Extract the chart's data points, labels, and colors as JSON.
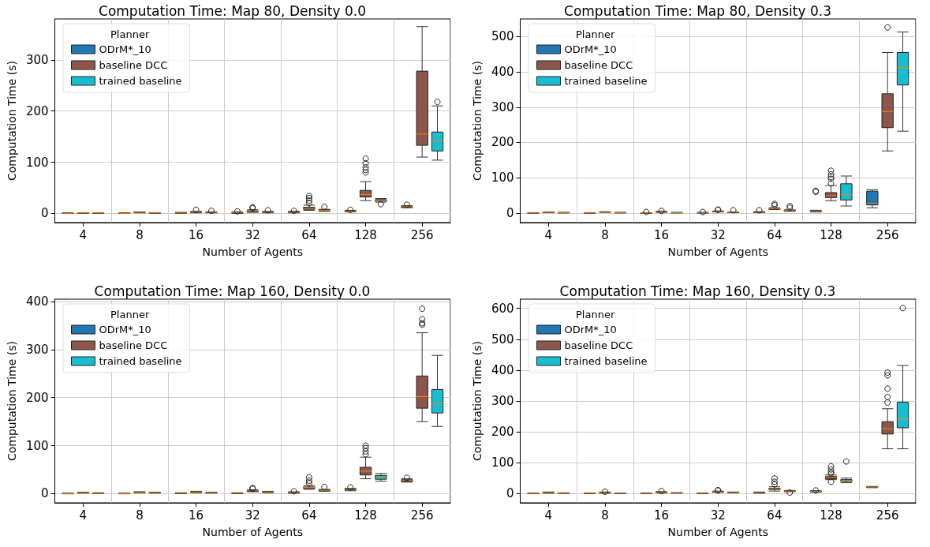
{
  "chart_data": [
    {
      "type": "box",
      "title": "Computation Time: Map 80, Density 0.0",
      "xlabel": "Number of Agents",
      "ylabel": "Computation Time (s)",
      "legend_title": "Planner",
      "legend": "top left",
      "grid": true,
      "categories": [
        "4",
        "8",
        "16",
        "32",
        "64",
        "128",
        "256"
      ],
      "ylim": [
        -18,
        380
      ],
      "yticks": [
        0,
        100,
        200,
        300
      ],
      "series": [
        {
          "name": "ODrM*_10",
          "color": "#1f77b4",
          "boxes": [
            {
              "low": 0,
              "q1": 0,
              "median": 0,
              "q3": 0.5,
              "high": 1
            },
            {
              "low": 0,
              "q1": 0,
              "median": 0,
              "q3": 0.5,
              "high": 1
            },
            {
              "low": 0,
              "q1": 0,
              "median": 0.5,
              "q3": 1,
              "high": 2
            },
            {
              "low": 0,
              "q1": 0.5,
              "median": 1,
              "q3": 1.5,
              "high": 3,
              "outliers": [
                4
              ]
            },
            {
              "low": 1,
              "q1": 1.5,
              "median": 2,
              "q3": 3,
              "high": 4,
              "outliers": [
                5
              ]
            },
            {
              "low": 3,
              "q1": 4,
              "median": 4.5,
              "q3": 5,
              "high": 6,
              "outliers": [
                7
              ]
            },
            {
              "low": 11,
              "q1": 12,
              "median": 13,
              "q3": 14,
              "high": 15,
              "outliers": [
                17
              ]
            }
          ]
        },
        {
          "name": "baseline DCC",
          "color": "#8c564b",
          "boxes": [
            {
              "low": 0.5,
              "q1": 0.8,
              "median": 1,
              "q3": 1.2,
              "high": 1.5
            },
            {
              "low": 1,
              "q1": 1.5,
              "median": 2,
              "q3": 2.5,
              "high": 3
            },
            {
              "low": 1,
              "q1": 2,
              "median": 2.5,
              "q3": 3,
              "high": 4,
              "outliers": [
                7
              ]
            },
            {
              "low": 2,
              "q1": 3,
              "median": 4,
              "q3": 5,
              "high": 7,
              "outliers": [
                10,
                12
              ]
            },
            {
              "low": 6,
              "q1": 8,
              "median": 10,
              "q3": 12,
              "high": 16,
              "outliers": [
                20,
                25,
                30,
                34
              ]
            },
            {
              "low": 25,
              "q1": 32,
              "median": 37,
              "q3": 45,
              "high": 62,
              "outliers": [
                80,
                85,
                90,
                98,
                107
              ]
            },
            {
              "low": 110,
              "q1": 133,
              "median": 155,
              "q3": 278,
              "high": 365
            }
          ]
        },
        {
          "name": "trained baseline",
          "color": "#17becf",
          "boxes": [
            {
              "low": 0.5,
              "q1": 0.7,
              "median": 1,
              "q3": 1.2,
              "high": 1.5
            },
            {
              "low": 0.5,
              "q1": 0.7,
              "median": 1,
              "q3": 1.2,
              "high": 1.5
            },
            {
              "low": 1,
              "q1": 1.5,
              "median": 2,
              "q3": 2.5,
              "high": 3,
              "outliers": [
                5
              ]
            },
            {
              "low": 1,
              "q1": 2,
              "median": 2.5,
              "q3": 3,
              "high": 4,
              "outliers": [
                6
              ]
            },
            {
              "low": 4,
              "q1": 5,
              "median": 6,
              "q3": 7,
              "high": 8,
              "outliers": [
                13
              ]
            },
            {
              "low": 22,
              "q1": 24,
              "median": 25,
              "q3": 27,
              "high": 29,
              "outliers": [
                18
              ]
            },
            {
              "low": 104,
              "q1": 122,
              "median": 142,
              "q3": 159,
              "high": 210,
              "outliers": [
                218
              ]
            }
          ]
        }
      ]
    },
    {
      "type": "box",
      "title": "Computation Time: Map 80, Density 0.3",
      "xlabel": "Number of Agents",
      "ylabel": "Computation Time (s)",
      "legend_title": "Planner",
      "legend": "top left",
      "grid": true,
      "categories": [
        "4",
        "8",
        "16",
        "32",
        "64",
        "128",
        "256"
      ],
      "ylim": [
        -27,
        550
      ],
      "yticks": [
        0,
        100,
        200,
        300,
        400,
        500
      ],
      "series": [
        {
          "name": "ODrM*_10",
          "color": "#1f77b4",
          "boxes": [
            {
              "low": 0,
              "q1": 0,
              "median": 0,
              "q3": 0.5,
              "high": 1
            },
            {
              "low": 0,
              "q1": 0,
              "median": 0,
              "q3": 0.5,
              "high": 1
            },
            {
              "low": 0,
              "q1": 0,
              "median": 0,
              "q3": 0.5,
              "high": 1,
              "outliers": [
                3
              ]
            },
            {
              "low": 0,
              "q1": 0.5,
              "median": 1,
              "q3": 1.5,
              "high": 2,
              "outliers": [
                3
              ]
            },
            {
              "low": 1,
              "q1": 1.5,
              "median": 2,
              "q3": 3,
              "high": 4,
              "outliers": [
                8
              ]
            },
            {
              "low": 3,
              "q1": 4,
              "median": 5,
              "q3": 6,
              "high": 8,
              "outliers": [
                60,
                63
              ]
            },
            {
              "low": 15,
              "q1": 23,
              "median": 28,
              "q3": 62,
              "high": 66
            }
          ]
        },
        {
          "name": "baseline DCC",
          "color": "#8c564b",
          "boxes": [
            {
              "low": 1,
              "q1": 1.5,
              "median": 2,
              "q3": 2.5,
              "high": 3
            },
            {
              "low": 2,
              "q1": 2.5,
              "median": 3,
              "q3": 3.5,
              "high": 4
            },
            {
              "low": 2,
              "q1": 2.5,
              "median": 3,
              "q3": 4,
              "high": 5,
              "outliers": [
                6
              ]
            },
            {
              "low": 3,
              "q1": 4,
              "median": 4.5,
              "q3": 5,
              "high": 6,
              "outliers": [
                9,
                10
              ]
            },
            {
              "low": 10,
              "q1": 11,
              "median": 12,
              "q3": 13,
              "high": 15,
              "outliers": [
                22,
                26
              ]
            },
            {
              "low": 35,
              "q1": 44,
              "median": 49,
              "q3": 58,
              "high": 78,
              "outliers": [
                84,
                97,
                102,
                110,
                120
              ]
            },
            {
              "low": 176,
              "q1": 242,
              "median": 288,
              "q3": 338,
              "high": 455,
              "outliers": [
                526
              ]
            }
          ]
        },
        {
          "name": "trained baseline",
          "color": "#17becf",
          "boxes": [
            {
              "low": 0.5,
              "q1": 1,
              "median": 1,
              "q3": 1.5,
              "high": 2
            },
            {
              "low": 0.5,
              "q1": 1,
              "median": 1,
              "q3": 1.5,
              "high": 2
            },
            {
              "low": 0.5,
              "q1": 1,
              "median": 1,
              "q3": 1.5,
              "high": 2
            },
            {
              "low": 1,
              "q1": 1.5,
              "median": 2,
              "q3": 2.5,
              "high": 3,
              "outliers": [
                8
              ]
            },
            {
              "low": 5,
              "q1": 6,
              "median": 7,
              "q3": 8,
              "high": 9,
              "outliers": [
                15,
                20
              ]
            },
            {
              "low": 20,
              "q1": 37,
              "median": 52,
              "q3": 83,
              "high": 105
            },
            {
              "low": 232,
              "q1": 363,
              "median": 412,
              "q3": 455,
              "high": 513
            }
          ]
        }
      ]
    },
    {
      "type": "box",
      "title": "Computation Time: Map 160, Density 0.0",
      "xlabel": "Number of Agents",
      "ylabel": "Computation Time (s)",
      "legend_title": "Planner",
      "legend": "top left",
      "grid": true,
      "categories": [
        "4",
        "8",
        "16",
        "32",
        "64",
        "128",
        "256"
      ],
      "ylim": [
        -19,
        405
      ],
      "yticks": [
        0,
        100,
        200,
        300,
        400
      ],
      "series": [
        {
          "name": "ODrM*_10",
          "color": "#1f77b4",
          "boxes": [
            {
              "low": 0,
              "q1": 0,
              "median": 0,
              "q3": 0.5,
              "high": 1
            },
            {
              "low": 0,
              "q1": 0,
              "median": 0,
              "q3": 0.5,
              "high": 1
            },
            {
              "low": 0,
              "q1": 0.5,
              "median": 1,
              "q3": 1.5,
              "high": 2
            },
            {
              "low": 0,
              "q1": 0.5,
              "median": 1,
              "q3": 1.5,
              "high": 2
            },
            {
              "low": 1,
              "q1": 2,
              "median": 2.5,
              "q3": 3,
              "high": 4,
              "outliers": [
                5
              ]
            },
            {
              "low": 6,
              "q1": 8,
              "median": 9,
              "q3": 10,
              "high": 11,
              "outliers": [
                13
              ]
            },
            {
              "low": 24,
              "q1": 26,
              "median": 28,
              "q3": 29,
              "high": 31,
              "outliers": [
                33
              ]
            }
          ]
        },
        {
          "name": "baseline DCC",
          "color": "#8c564b",
          "boxes": [
            {
              "low": 1,
              "q1": 1.5,
              "median": 2,
              "q3": 2.5,
              "high": 3
            },
            {
              "low": 2,
              "q1": 2.5,
              "median": 3,
              "q3": 3.5,
              "high": 4
            },
            {
              "low": 2,
              "q1": 3,
              "median": 3.5,
              "q3": 4,
              "high": 5
            },
            {
              "low": 4,
              "q1": 5,
              "median": 6,
              "q3": 6.5,
              "high": 8,
              "outliers": [
                10,
                12
              ]
            },
            {
              "low": 9,
              "q1": 11,
              "median": 13,
              "q3": 14,
              "high": 17,
              "outliers": [
                22,
                27,
                34
              ]
            },
            {
              "low": 31,
              "q1": 39,
              "median": 47,
              "q3": 55,
              "high": 76,
              "outliers": [
                82,
                88,
                95,
                100
              ]
            },
            {
              "low": 150,
              "q1": 178,
              "median": 202,
              "q3": 245,
              "high": 335,
              "outliers": [
                352,
                355,
                363,
                385
              ]
            }
          ]
        },
        {
          "name": "trained baseline",
          "color": "#17becf",
          "boxes": [
            {
              "low": 0.5,
              "q1": 1,
              "median": 1,
              "q3": 1.5,
              "high": 2
            },
            {
              "low": 1,
              "q1": 1.5,
              "median": 2,
              "q3": 2.5,
              "high": 3
            },
            {
              "low": 1,
              "q1": 1.5,
              "median": 2,
              "q3": 2.5,
              "high": 3
            },
            {
              "low": 2,
              "q1": 3,
              "median": 3.5,
              "q3": 4,
              "high": 5
            },
            {
              "low": 5,
              "q1": 6,
              "median": 7,
              "q3": 8,
              "high": 9,
              "outliers": [
                14
              ]
            },
            {
              "low": 26,
              "q1": 30,
              "median": 33,
              "q3": 38,
              "high": 42
            },
            {
              "low": 140,
              "q1": 168,
              "median": 187,
              "q3": 217,
              "high": 288
            }
          ]
        }
      ]
    },
    {
      "type": "box",
      "title": "Computation Time: Map 160, Density 0.3",
      "xlabel": "Number of Agents",
      "ylabel": "Computation Time (s)",
      "legend_title": "Planner",
      "legend": "top left",
      "grid": true,
      "categories": [
        "4",
        "8",
        "16",
        "32",
        "64",
        "128",
        "256"
      ],
      "ylim": [
        -30,
        630
      ],
      "yticks": [
        0,
        100,
        200,
        300,
        400,
        500,
        600
      ],
      "series": [
        {
          "name": "ODrM*_10",
          "color": "#1f77b4",
          "boxes": [
            {
              "low": 0,
              "q1": 0,
              "median": 0,
              "q3": 0.5,
              "high": 1
            },
            {
              "low": 0,
              "q1": 0.5,
              "median": 1,
              "q3": 1.5,
              "high": 2
            },
            {
              "low": 0,
              "q1": 0,
              "median": 0.5,
              "q3": 1,
              "high": 1
            },
            {
              "low": 0,
              "q1": 0.5,
              "median": 1,
              "q3": 1.5,
              "high": 2
            },
            {
              "low": 1,
              "q1": 2,
              "median": 3,
              "q3": 4,
              "high": 5
            },
            {
              "low": 5,
              "q1": 6,
              "median": 7,
              "q3": 8,
              "high": 9,
              "outliers": [
                10
              ]
            },
            {
              "low": 19,
              "q1": 20,
              "median": 21,
              "q3": 22,
              "high": 23
            }
          ]
        },
        {
          "name": "baseline DCC",
          "color": "#8c564b",
          "boxes": [
            {
              "low": 1,
              "q1": 2,
              "median": 3,
              "q3": 4,
              "high": 5
            },
            {
              "low": 1,
              "q1": 2,
              "median": 3,
              "q3": 4,
              "high": 5,
              "outliers": [
                6
              ]
            },
            {
              "low": 2,
              "q1": 3,
              "median": 4,
              "q3": 5,
              "high": 6,
              "outliers": [
                8
              ]
            },
            {
              "low": 4,
              "q1": 5,
              "median": 6,
              "q3": 7,
              "high": 8,
              "outliers": [
                10,
                11
              ]
            },
            {
              "low": 8,
              "q1": 13,
              "median": 15,
              "q3": 17,
              "high": 22,
              "outliers": [
                30,
                38,
                49
              ]
            },
            {
              "low": 45,
              "q1": 48,
              "median": 51,
              "q3": 55,
              "high": 60,
              "outliers": [
                38,
                65,
                70,
                78,
                88
              ]
            },
            {
              "low": 145,
              "q1": 193,
              "median": 210,
              "q3": 233,
              "high": 275,
              "outliers": [
                295,
                313,
                340,
                383,
                392
              ]
            }
          ]
        },
        {
          "name": "trained baseline",
          "color": "#17becf",
          "boxes": [
            {
              "low": 0.5,
              "q1": 1,
              "median": 1.5,
              "q3": 2,
              "high": 2.5
            },
            {
              "low": 0.5,
              "q1": 1,
              "median": 1,
              "q3": 1.5,
              "high": 2
            },
            {
              "low": 1,
              "q1": 1.5,
              "median": 2,
              "q3": 2.5,
              "high": 3
            },
            {
              "low": 2,
              "q1": 3,
              "median": 3.5,
              "q3": 4,
              "high": 5
            },
            {
              "low": 6,
              "q1": 7,
              "median": 8,
              "q3": 9,
              "high": 10,
              "outliers": [
                3
              ]
            },
            {
              "low": 35,
              "q1": 39,
              "median": 42,
              "q3": 45,
              "high": 50,
              "outliers": [
                104
              ]
            },
            {
              "low": 145,
              "q1": 213,
              "median": 242,
              "q3": 296,
              "high": 415,
              "outliers": [
                601
              ]
            }
          ]
        }
      ]
    }
  ]
}
